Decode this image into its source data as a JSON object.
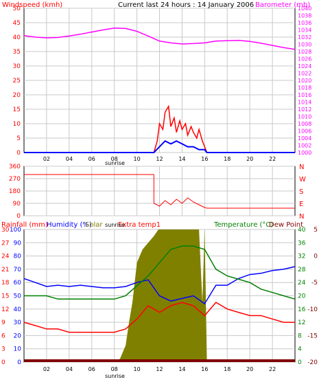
{
  "colors": {
    "background": "#ffffff",
    "panel_bg": "#ffffff",
    "frame": "#000000",
    "grid": "#c8c8c8",
    "wind": "#0000ff",
    "gust": "#ff0000",
    "barometer": "#ff00ff",
    "direction": "#ff0000",
    "rainfall": "#ff0000",
    "humidity": "#0000ff",
    "solar": "#808000",
    "extra_temp": "#ff0000",
    "temperature": "#008000",
    "dew_point": "#800000",
    "text_red": "#ff0000",
    "text_magenta": "#ff00ff",
    "text_blue": "#0000ff",
    "text_olive": "#808000",
    "text_green": "#008000",
    "text_maroon": "#800000",
    "text_black": "#000000"
  },
  "header": {
    "left_label": "Windspeed (kmh)",
    "center_label": "Current last 24 hours : 14 January 2006",
    "right_label": "Barometer (mb)"
  },
  "bottom_header": {
    "rainfall_label": "Rainfall (mm)",
    "humidity_label": "Humidity (%)",
    "solar_label": "Solar",
    "extra_label": "Extra temp1",
    "temp_label": "Temperature (°C)",
    "dew_label": "Dew Point"
  },
  "x_axis": {
    "ticks": [
      "02",
      "04",
      "06",
      "08",
      "10",
      "12",
      "14",
      "16",
      "18",
      "20",
      "22"
    ],
    "sunrise_label": "sunrise"
  },
  "chart_data": [
    {
      "type": "line",
      "panel": "wind_barometer",
      "x_range": [
        0,
        24
      ],
      "left_axis": {
        "ticks": [
          "0",
          "5",
          "10",
          "15",
          "20",
          "25",
          "30",
          "35",
          "40",
          "45",
          "50"
        ],
        "range": [
          0,
          50
        ]
      },
      "right_axis": {
        "ticks": [
          "1000",
          "1002",
          "1004",
          "1006",
          "1008",
          "1010",
          "1012",
          "1014",
          "1016",
          "1018",
          "1020",
          "1022",
          "1024",
          "1026",
          "1028",
          "1030",
          "1032",
          "1034",
          "1036",
          "1038",
          "1040"
        ],
        "range": [
          1000,
          1040
        ]
      },
      "series": [
        {
          "key": "barometer",
          "axis": "right",
          "x": [
            0,
            1,
            2,
            3,
            4,
            5,
            6,
            7,
            8,
            9,
            10,
            11,
            12,
            13,
            14,
            15,
            16,
            17,
            18,
            19,
            20,
            21,
            22,
            23,
            24
          ],
          "y": [
            1032.4,
            1032.0,
            1031.8,
            1031.9,
            1032.3,
            1032.8,
            1033.4,
            1034.0,
            1034.5,
            1034.4,
            1033.6,
            1032.3,
            1030.9,
            1030.4,
            1030.1,
            1030.2,
            1030.4,
            1030.9,
            1031.0,
            1031.1,
            1030.8,
            1030.3,
            1029.7,
            1029.1,
            1028.6
          ]
        },
        {
          "key": "gust",
          "axis": "left",
          "x": [
            11.5,
            11.8,
            12.0,
            12.3,
            12.5,
            12.8,
            13.0,
            13.3,
            13.5,
            13.8,
            14.0,
            14.3,
            14.5,
            14.8,
            15.0,
            15.3,
            15.5,
            15.8,
            16.0,
            16.2
          ],
          "y": [
            0,
            4,
            10,
            8,
            14,
            16,
            9,
            12,
            7,
            11,
            8,
            10,
            6,
            9,
            7,
            5,
            8,
            4,
            2,
            0
          ]
        },
        {
          "key": "wind",
          "axis": "left",
          "x": [
            0,
            11.5,
            12.0,
            12.5,
            13.0,
            13.5,
            14.0,
            14.5,
            15.0,
            15.5,
            16.0,
            16.2,
            24
          ],
          "y": [
            0,
            0,
            2,
            4,
            3,
            4,
            3,
            2,
            2,
            1,
            1,
            0,
            0
          ]
        }
      ]
    },
    {
      "type": "line",
      "panel": "wind_direction",
      "x_range": [
        0,
        24
      ],
      "left_axis": {
        "ticks": [
          "0",
          "90",
          "180",
          "270",
          "360"
        ],
        "range": [
          0,
          360
        ]
      },
      "right_axis": {
        "ticks": [
          "N",
          "E",
          "S",
          "W",
          "N"
        ]
      },
      "series": [
        {
          "key": "direction",
          "x": [
            0,
            11.5,
            11.5,
            12.0,
            12.5,
            13.0,
            13.5,
            14.0,
            14.5,
            15.0,
            15.5,
            16.0,
            16.2,
            24
          ],
          "y": [
            300,
            300,
            90,
            70,
            110,
            80,
            120,
            90,
            130,
            100,
            80,
            60,
            55,
            55
          ]
        }
      ]
    },
    {
      "type": "line",
      "panel": "rain_humidity_temperature",
      "x_range": [
        0,
        24
      ],
      "left_axis_rain": {
        "ticks": [
          "0",
          "3",
          "6",
          "9",
          "12",
          "15",
          "18",
          "21",
          "24",
          "27",
          "30"
        ],
        "range": [
          0,
          30
        ]
      },
      "left_axis_humidity": {
        "ticks": [
          "0",
          "10",
          "20",
          "30",
          "40",
          "50",
          "60",
          "70",
          "80",
          "90",
          "100"
        ],
        "range": [
          0,
          100
        ]
      },
      "right_axis_temp": {
        "ticks": [
          "0",
          "4",
          "8",
          "12",
          "16",
          "20",
          "24",
          "28",
          "32",
          "36",
          "40"
        ],
        "range": [
          0,
          40
        ]
      },
      "right_axis_dew": {
        "ticks": [
          "-20",
          "-15",
          "-10",
          "-5",
          "0",
          "5"
        ],
        "range": [
          -20,
          5
        ]
      },
      "series": [
        {
          "key": "solar",
          "axis": "temp",
          "x": [
            0,
            8.0,
            8.5,
            9.0,
            9.3,
            9.6,
            10.0,
            10.5,
            11.0,
            11.5,
            11.9,
            12.0,
            13.0,
            14.0,
            15.0,
            15.5,
            15.8,
            16.0,
            16.2,
            24
          ],
          "y": [
            0,
            0,
            1,
            5,
            12,
            18,
            30,
            34,
            36,
            38,
            40,
            40,
            40,
            40,
            40,
            40,
            18,
            40,
            0,
            0
          ]
        },
        {
          "key": "humidity",
          "axis": "humidity",
          "x": [
            0,
            1,
            2,
            3,
            4,
            5,
            6,
            7,
            8,
            9,
            10,
            11,
            12,
            13,
            14,
            15,
            16,
            17,
            18,
            19,
            20,
            21,
            22,
            23,
            24
          ],
          "y": [
            63,
            60,
            57,
            58,
            57,
            58,
            57,
            56,
            56,
            57,
            60,
            62,
            50,
            46,
            48,
            50,
            44,
            58,
            58,
            63,
            66,
            67,
            69,
            70,
            72
          ]
        },
        {
          "key": "temperature",
          "axis": "temp",
          "x": [
            0,
            1,
            2,
            3,
            4,
            5,
            6,
            7,
            8,
            9,
            10,
            11,
            12,
            13,
            14,
            15,
            16,
            17,
            18,
            19,
            20,
            21,
            22,
            23,
            24
          ],
          "y": [
            20,
            20,
            20,
            19,
            19,
            19,
            19,
            19,
            19,
            20,
            23,
            26,
            30,
            34,
            35,
            35,
            34,
            28,
            26,
            25,
            24,
            22,
            21,
            20,
            19
          ]
        },
        {
          "key": "extra_temp",
          "axis": "temp",
          "x": [
            0,
            1,
            2,
            3,
            4,
            5,
            6,
            7,
            8,
            9,
            10,
            11,
            12,
            13,
            14,
            15,
            16,
            17,
            18,
            19,
            20,
            21,
            22,
            23,
            24
          ],
          "y": [
            12,
            11,
            10,
            10,
            9,
            9,
            9,
            9,
            9,
            10,
            13,
            17,
            15,
            17,
            18,
            17,
            14,
            18,
            16,
            15,
            14,
            14,
            13,
            12,
            12
          ]
        }
      ]
    }
  ]
}
